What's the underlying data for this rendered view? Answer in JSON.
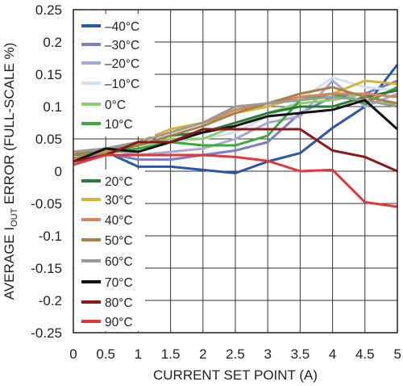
{
  "chart_data": {
    "type": "line",
    "xlabel": "CURRENT SET POINT (A)",
    "ylabel_parts": [
      "AVERAGE I",
      "OUT",
      " ERROR (FULL-SCALE %)"
    ],
    "xlim": [
      0,
      5
    ],
    "ylim": [
      -0.25,
      0.25
    ],
    "xticks": [
      "0",
      "0.5",
      "1",
      "1.5",
      "2",
      "2.5",
      "3",
      "3.5",
      "4",
      "4.5",
      "5"
    ],
    "yticks": [
      "0.25",
      "0.2",
      "0.15",
      "0.1",
      "0.05",
      "0",
      "-0.05",
      "-0.1",
      "-0.15",
      "-0.2",
      "-0.25"
    ],
    "grid": true,
    "legend_position": "left, inside plot (two groups)",
    "x": [
      0,
      0.5,
      1,
      1.5,
      2,
      2.5,
      3,
      3.5,
      4,
      4.5,
      5
    ],
    "series": [
      {
        "name": "–40°C",
        "color": "#2a55a8",
        "values": [
          0.015,
          0.03,
          0.007,
          0.007,
          0.002,
          -0.003,
          0.015,
          0.028,
          0.067,
          0.1,
          0.165
        ]
      },
      {
        "name": "–30°C",
        "color": "#7c7ec4",
        "values": [
          0.02,
          0.028,
          0.018,
          0.018,
          0.025,
          0.032,
          0.045,
          0.09,
          0.115,
          0.12,
          0.14
        ]
      },
      {
        "name": "–20°C",
        "color": "#a8a8d4",
        "values": [
          0.03,
          0.035,
          0.025,
          0.03,
          0.035,
          0.05,
          0.075,
          0.085,
          0.14,
          0.1,
          0.12
        ]
      },
      {
        "name": "–10°C",
        "color": "#d4dff2",
        "values": [
          0.025,
          0.032,
          0.04,
          0.045,
          0.05,
          0.06,
          0.085,
          0.11,
          0.145,
          0.13,
          0.125
        ]
      },
      {
        "name": "0°C",
        "color": "#8ccc70",
        "values": [
          0.03,
          0.035,
          0.04,
          0.05,
          0.05,
          0.07,
          0.09,
          0.105,
          0.11,
          0.12,
          0.1
        ]
      },
      {
        "name": "10°C",
        "color": "#3aaa3a",
        "values": [
          0.025,
          0.028,
          0.035,
          0.045,
          0.04,
          0.04,
          0.055,
          0.11,
          0.12,
          0.105,
          0.13
        ]
      },
      {
        "name": "20°C",
        "color": "#2a7a3a",
        "values": [
          0.03,
          0.03,
          0.04,
          0.055,
          0.06,
          0.075,
          0.09,
          0.1,
          0.1,
          0.115,
          0.125
        ]
      },
      {
        "name": "30°C",
        "color": "#d4b43a",
        "values": [
          0.025,
          0.035,
          0.045,
          0.065,
          0.075,
          0.09,
          0.1,
          0.115,
          0.12,
          0.14,
          0.135
        ]
      },
      {
        "name": "40°C",
        "color": "#d4875a",
        "values": [
          0.02,
          0.03,
          0.045,
          0.06,
          0.075,
          0.095,
          0.105,
          0.115,
          0.12,
          0.12,
          0.115
        ]
      },
      {
        "name": "50°C",
        "color": "#a8804a",
        "values": [
          0.025,
          0.035,
          0.04,
          0.055,
          0.07,
          0.09,
          0.105,
          0.12,
          0.13,
          0.115,
          0.105
        ]
      },
      {
        "name": "60°C",
        "color": "#9a9a9a",
        "values": [
          0.03,
          0.035,
          0.045,
          0.06,
          0.075,
          0.1,
          0.105,
          0.11,
          0.115,
          0.11,
          0.1
        ]
      },
      {
        "name": "70°C",
        "color": "#111111",
        "values": [
          0.015,
          0.035,
          0.03,
          0.045,
          0.06,
          0.07,
          0.085,
          0.09,
          0.095,
          0.11,
          0.065
        ]
      },
      {
        "name": "80°C",
        "color": "#8a1a1a",
        "values": [
          0.015,
          0.025,
          0.045,
          0.045,
          0.065,
          0.065,
          0.065,
          0.065,
          0.032,
          0.022,
          0.0
        ]
      },
      {
        "name": "90°C",
        "color": "#e0383a",
        "values": [
          0.01,
          0.025,
          0.025,
          0.025,
          0.025,
          0.022,
          0.016,
          0.0,
          0.002,
          -0.048,
          -0.055
        ]
      }
    ]
  }
}
